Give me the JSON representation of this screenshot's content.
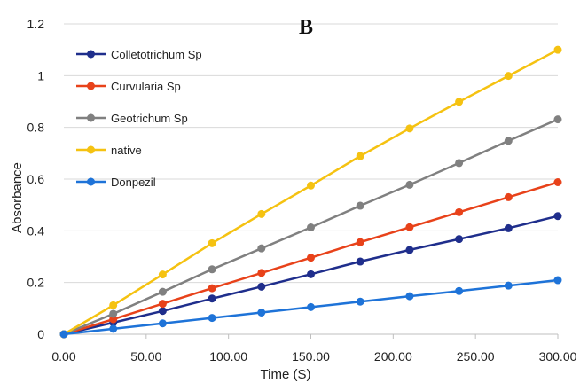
{
  "panel_label": "B",
  "chart_data": {
    "type": "line",
    "title": "",
    "xlabel": "Time (S)",
    "ylabel": "Absorbance",
    "xlim": [
      0,
      300
    ],
    "ylim": [
      0,
      1.2
    ],
    "x_ticks": [
      "0.00",
      "50.00",
      "100.00",
      "150.00",
      "200.00",
      "250.00",
      "300.00"
    ],
    "y_ticks": [
      "0",
      "0.2",
      "0.4",
      "0.6",
      "0.8",
      "1",
      "1.2"
    ],
    "grid": "horizontal",
    "legend": "top-left",
    "x": [
      0,
      30,
      60,
      90,
      120,
      150,
      180,
      210,
      240,
      270,
      300
    ],
    "series": [
      {
        "name": "Colletotrichum Sp",
        "color": "#1f2e8c",
        "values": [
          0,
          0.045,
          0.09,
          0.138,
          0.184,
          0.232,
          0.281,
          0.326,
          0.368,
          0.41,
          0.457
        ]
      },
      {
        "name": "Curvularia Sp",
        "color": "#e8421a",
        "values": [
          0,
          0.058,
          0.118,
          0.178,
          0.237,
          0.296,
          0.356,
          0.414,
          0.472,
          0.53,
          0.588
        ]
      },
      {
        "name": "Geotrichum Sp",
        "color": "#808080",
        "values": [
          0,
          0.079,
          0.164,
          0.251,
          0.332,
          0.413,
          0.497,
          0.578,
          0.662,
          0.748,
          0.831
        ]
      },
      {
        "name": "native",
        "color": "#f5c211",
        "values": [
          0,
          0.112,
          0.231,
          0.352,
          0.465,
          0.575,
          0.689,
          0.796,
          0.899,
          0.999,
          1.1
        ]
      },
      {
        "name": "Donpezil",
        "color": "#1e73d8",
        "values": [
          0,
          0.021,
          0.042,
          0.063,
          0.084,
          0.105,
          0.126,
          0.147,
          0.167,
          0.188,
          0.209
        ]
      }
    ]
  }
}
